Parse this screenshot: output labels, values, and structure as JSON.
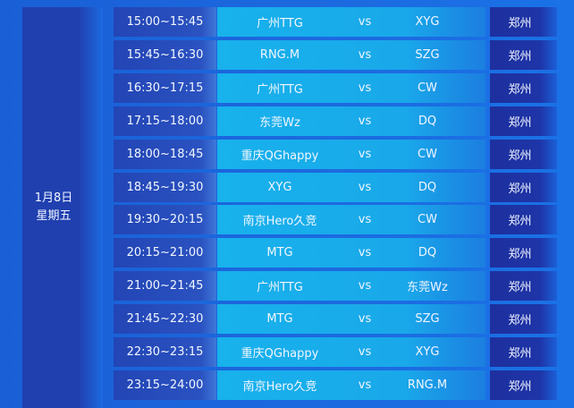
{
  "date": {
    "day": "1月8日",
    "weekday": "星期五"
  },
  "matches": [
    {
      "time": "15:00~15:45",
      "team1": "广州TTG",
      "vs": "vs",
      "team2": "XYG",
      "city": "郑州"
    },
    {
      "time": "15:45~16:30",
      "team1": "RNG.M",
      "vs": "vs",
      "team2": "SZG",
      "city": "郑州"
    },
    {
      "time": "16:30~17:15",
      "team1": "广州TTG",
      "vs": "vs",
      "team2": "CW",
      "city": "郑州"
    },
    {
      "time": "17:15~18:00",
      "team1": "东莞Wz",
      "vs": "vs",
      "team2": "DQ",
      "city": "郑州"
    },
    {
      "time": "18:00~18:45",
      "team1": "重庆QGhappy",
      "vs": "vs",
      "team2": "CW",
      "city": "郑州"
    },
    {
      "time": "18:45~19:30",
      "team1": "XYG",
      "vs": "vs",
      "team2": "DQ",
      "city": "郑州"
    },
    {
      "time": "19:30~20:15",
      "team1": "南京Hero久竞",
      "vs": "vs",
      "team2": "CW",
      "city": "郑州"
    },
    {
      "time": "20:15~21:00",
      "team1": "MTG",
      "vs": "vs",
      "team2": "DQ",
      "city": "郑州"
    },
    {
      "time": "21:00~21:45",
      "team1": "广州TTG",
      "vs": "vs",
      "team2": "东莞Wz",
      "city": "郑州"
    },
    {
      "time": "21:45~22:30",
      "team1": "MTG",
      "vs": "vs",
      "team2": "SZG",
      "city": "郑州"
    },
    {
      "time": "22:30~23:15",
      "team1": "重庆QGhappy",
      "vs": "vs",
      "team2": "XYG",
      "city": "郑州"
    },
    {
      "time": "23:15~24:00",
      "team1": "南京Hero久竞",
      "vs": "vs",
      "team2": "RNG.M",
      "city": "郑州"
    }
  ]
}
